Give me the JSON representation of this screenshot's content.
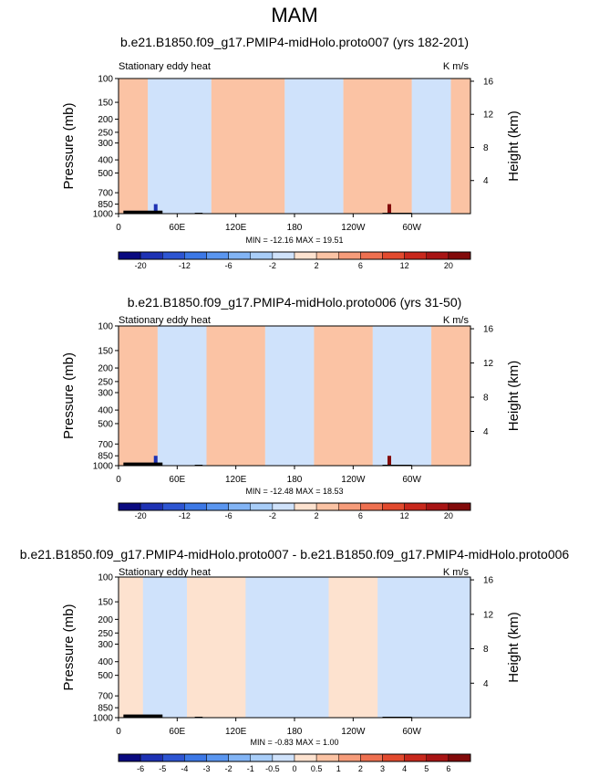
{
  "main_title": "MAM",
  "chart_data": [
    {
      "type": "heatmap",
      "title": "b.e21.B1850.f09_g17.PMIP4-midHolo.proto007 (yrs 182-201)",
      "left_label": "Stationary eddy heat",
      "units": "K m/s",
      "ylabel": "Pressure (mb)",
      "y2label": "Height (km)",
      "xticks": [
        "0",
        "60E",
        "120E",
        "180",
        "120W",
        "60W"
      ],
      "yticks": [
        "100",
        "150",
        "200",
        "250",
        "300",
        "400",
        "500",
        "700",
        "850",
        "1000"
      ],
      "ylim": [
        1000,
        100
      ],
      "height_ticks": [
        "4",
        "8",
        "12",
        "16"
      ],
      "stats": "MIN = -12.16   MAX =  19.51",
      "min": -12.16,
      "max": 19.51,
      "colorbar_ticks": [
        "-20",
        "-12",
        "-6",
        "-2",
        "2",
        "6",
        "12",
        "20"
      ],
      "colorbar_levels": [
        -20,
        -16,
        -12,
        -8,
        -6,
        -4,
        -2,
        -1,
        0,
        1,
        2,
        4,
        6,
        8,
        12,
        16,
        20
      ],
      "bands": [
        {
          "lon_from": 0,
          "lon_to": 30,
          "value": 1
        },
        {
          "lon_from": 30,
          "lon_to": 95,
          "value": -1
        },
        {
          "lon_from": 95,
          "lon_to": 170,
          "value": 1
        },
        {
          "lon_from": 170,
          "lon_to": 230,
          "value": -1
        },
        {
          "lon_from": 230,
          "lon_to": 300,
          "value": 1
        },
        {
          "lon_from": 300,
          "lon_to": 340,
          "value": -1
        },
        {
          "lon_from": 340,
          "lon_to": 360,
          "value": 1
        }
      ],
      "extremes": [
        {
          "lon": 38,
          "value": -12.16
        },
        {
          "lon": 277,
          "value": 19.51
        }
      ]
    },
    {
      "type": "heatmap",
      "title": "b.e21.B1850.f09_g17.PMIP4-midHolo.proto006 (yrs 31-50)",
      "left_label": "Stationary eddy heat",
      "units": "K m/s",
      "ylabel": "Pressure (mb)",
      "y2label": "Height (km)",
      "xticks": [
        "0",
        "60E",
        "120E",
        "180",
        "120W",
        "60W"
      ],
      "yticks": [
        "100",
        "150",
        "200",
        "250",
        "300",
        "400",
        "500",
        "700",
        "850",
        "1000"
      ],
      "ylim": [
        1000,
        100
      ],
      "height_ticks": [
        "4",
        "8",
        "12",
        "16"
      ],
      "stats": "MIN = -12.48   MAX =  18.53",
      "min": -12.48,
      "max": 18.53,
      "colorbar_ticks": [
        "-20",
        "-12",
        "-6",
        "-2",
        "2",
        "6",
        "12",
        "20"
      ],
      "colorbar_levels": [
        -20,
        -16,
        -12,
        -8,
        -6,
        -4,
        -2,
        -1,
        0,
        1,
        2,
        4,
        6,
        8,
        12,
        16,
        20
      ],
      "bands": [
        {
          "lon_from": 0,
          "lon_to": 40,
          "value": 1
        },
        {
          "lon_from": 40,
          "lon_to": 90,
          "value": -1
        },
        {
          "lon_from": 90,
          "lon_to": 150,
          "value": 1
        },
        {
          "lon_from": 150,
          "lon_to": 200,
          "value": -1
        },
        {
          "lon_from": 200,
          "lon_to": 260,
          "value": 1
        },
        {
          "lon_from": 260,
          "lon_to": 320,
          "value": -1
        },
        {
          "lon_from": 320,
          "lon_to": 360,
          "value": 1
        }
      ],
      "extremes": [
        {
          "lon": 38,
          "value": -12.48
        },
        {
          "lon": 277,
          "value": 18.53
        }
      ]
    },
    {
      "type": "heatmap",
      "title": "b.e21.B1850.f09_g17.PMIP4-midHolo.proto007 - b.e21.B1850.f09_g17.PMIP4-midHolo.proto006",
      "left_label": "Stationary eddy heat",
      "units": "K m/s",
      "ylabel": "Pressure (mb)",
      "y2label": "Height (km)",
      "xticks": [
        "0",
        "60E",
        "120E",
        "180",
        "120W",
        "60W"
      ],
      "yticks": [
        "100",
        "150",
        "200",
        "250",
        "300",
        "400",
        "500",
        "700",
        "850",
        "1000"
      ],
      "ylim": [
        1000,
        100
      ],
      "height_ticks": [
        "4",
        "8",
        "12",
        "16"
      ],
      "stats": "MIN =  -0.83   MAX =   1.00",
      "min": -0.83,
      "max": 1.0,
      "colorbar_ticks": [
        "-6",
        "-5",
        "-4",
        "-3",
        "-2",
        "-1",
        "-0.5",
        "0",
        "0.5",
        "1",
        "2",
        "3",
        "4",
        "5",
        "6"
      ],
      "colorbar_levels": [
        -7,
        -6,
        -5,
        -4,
        -3,
        -2,
        -1,
        -0.5,
        0,
        0.5,
        1,
        2,
        3,
        4,
        5,
        6,
        7
      ],
      "bands": [
        {
          "lon_from": 0,
          "lon_to": 25,
          "value": 0.25
        },
        {
          "lon_from": 25,
          "lon_to": 70,
          "value": -0.25
        },
        {
          "lon_from": 70,
          "lon_to": 130,
          "value": 0.25
        },
        {
          "lon_from": 130,
          "lon_to": 215,
          "value": -0.25
        },
        {
          "lon_from": 215,
          "lon_to": 265,
          "value": 0.25
        },
        {
          "lon_from": 265,
          "lon_to": 360,
          "value": -0.25
        }
      ],
      "extremes": []
    }
  ]
}
